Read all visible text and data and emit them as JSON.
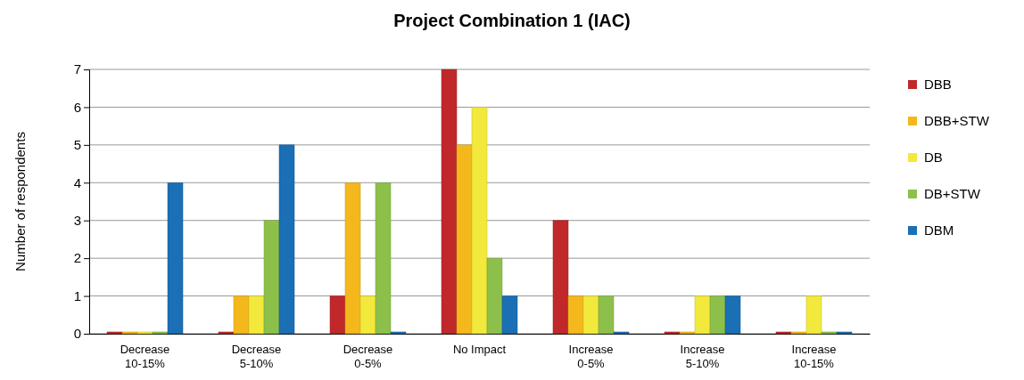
{
  "chart_data": {
    "type": "bar",
    "title": "Project Combination 1 (IAC)",
    "ylabel": "Number of respondents",
    "categories": [
      "Decrease 10-15%",
      "Decrease 5-10%",
      "Decrease 0-5%",
      "No Impact",
      "Increase 0-5%",
      "Increase 5-10%",
      "Increase 10-15%"
    ],
    "series": [
      {
        "name": "DBB",
        "color": "#c0282a",
        "values": [
          0,
          0,
          1,
          7,
          3,
          0,
          0
        ]
      },
      {
        "name": "DBB+STW",
        "color": "#f5b81c",
        "values": [
          0,
          1,
          4,
          5,
          1,
          0,
          0
        ]
      },
      {
        "name": "DB",
        "color": "#f2e93c",
        "values": [
          0,
          1,
          1,
          6,
          1,
          1,
          1
        ]
      },
      {
        "name": "DB+STW",
        "color": "#8dc04a",
        "values": [
          0,
          3,
          4,
          2,
          1,
          1,
          0
        ]
      },
      {
        "name": "DBM",
        "color": "#1a6fb5",
        "values": [
          4,
          5,
          0,
          1,
          0,
          1,
          0
        ]
      }
    ],
    "ylim": [
      0,
      7
    ],
    "yticks": [
      0,
      1,
      2,
      3,
      4,
      5,
      6,
      7
    ],
    "grid": "y",
    "legend": "right"
  }
}
